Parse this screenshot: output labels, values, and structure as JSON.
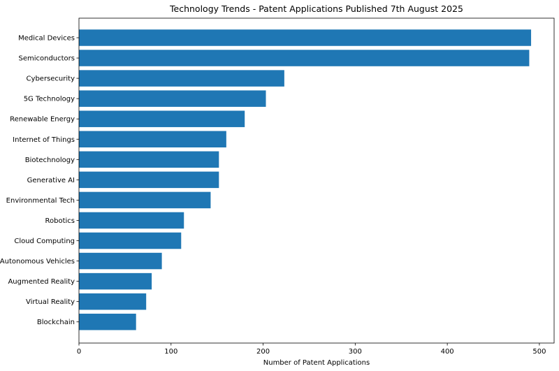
{
  "chart_data": {
    "type": "bar",
    "orientation": "horizontal",
    "title": "Technology Trends - Patent Applications Published 7th August 2025",
    "xlabel": "Number of Patent Applications",
    "ylabel": "",
    "xlim": [
      0,
      516
    ],
    "xticks": [
      0,
      100,
      200,
      300,
      400,
      500
    ],
    "grid": false,
    "bar_color": "#1f77b4",
    "categories": [
      "Medical Devices",
      "Semiconductors",
      "Cybersecurity",
      "5G Technology",
      "Renewable Energy",
      "Internet of Things",
      "Biotechnology",
      "Generative AI",
      "Environmental Tech",
      "Robotics",
      "Cloud Computing",
      "Autonomous Vehicles",
      "Augmented Reality",
      "Virtual Reality",
      "Blockchain"
    ],
    "values": [
      491,
      489,
      223,
      203,
      180,
      160,
      152,
      152,
      143,
      114,
      111,
      90,
      79,
      73,
      62
    ]
  }
}
